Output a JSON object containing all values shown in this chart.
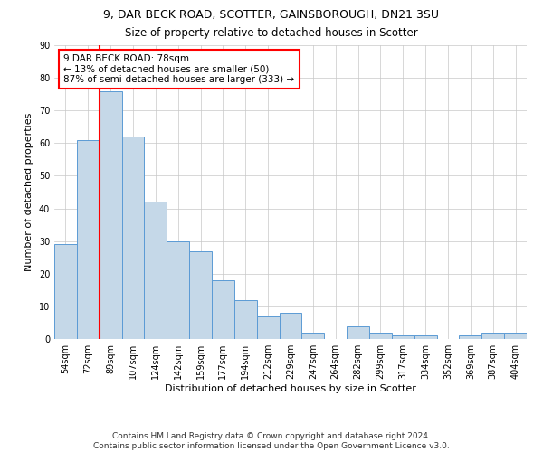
{
  "title_line1": "9, DAR BECK ROAD, SCOTTER, GAINSBOROUGH, DN21 3SU",
  "title_line2": "Size of property relative to detached houses in Scotter",
  "xlabel": "Distribution of detached houses by size in Scotter",
  "ylabel": "Number of detached properties",
  "categories": [
    "54sqm",
    "72sqm",
    "89sqm",
    "107sqm",
    "124sqm",
    "142sqm",
    "159sqm",
    "177sqm",
    "194sqm",
    "212sqm",
    "229sqm",
    "247sqm",
    "264sqm",
    "282sqm",
    "299sqm",
    "317sqm",
    "334sqm",
    "352sqm",
    "369sqm",
    "387sqm",
    "404sqm"
  ],
  "values": [
    29,
    61,
    76,
    62,
    42,
    30,
    27,
    18,
    12,
    7,
    8,
    2,
    0,
    4,
    2,
    1,
    1,
    0,
    1,
    2,
    2
  ],
  "bar_color": "#c5d8e8",
  "bar_edge_color": "#5b9bd5",
  "subject_line_index": 1,
  "annotation_text": "9 DAR BECK ROAD: 78sqm\n← 13% of detached houses are smaller (50)\n87% of semi-detached houses are larger (333) →",
  "annotation_box_color": "white",
  "annotation_box_edge_color": "red",
  "subject_line_color": "red",
  "grid_color": "#c8c8c8",
  "background_color": "white",
  "ylim": [
    0,
    90
  ],
  "yticks": [
    0,
    10,
    20,
    30,
    40,
    50,
    60,
    70,
    80,
    90
  ],
  "footer_text": "Contains HM Land Registry data © Crown copyright and database right 2024.\nContains public sector information licensed under the Open Government Licence v3.0.",
  "title_fontsize": 9,
  "subtitle_fontsize": 8.5,
  "xlabel_fontsize": 8,
  "ylabel_fontsize": 8,
  "tick_fontsize": 7,
  "annotation_fontsize": 7.5,
  "footer_fontsize": 6.5
}
